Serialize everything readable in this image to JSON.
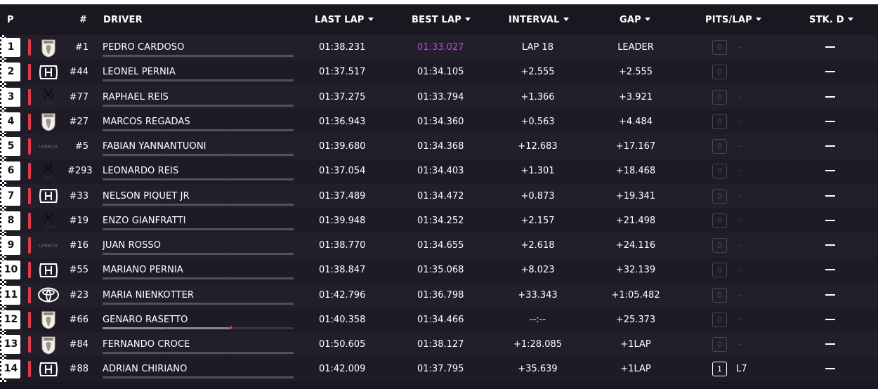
{
  "header": {
    "pos": "P",
    "num": "#",
    "driver": "DRIVER",
    "last_lap": "LAST LAP",
    "best_lap": "BEST LAP",
    "interval": "INTERVAL",
    "gap": "GAP",
    "pits_lap": "PITS/LAP",
    "stk_d": "STK. D"
  },
  "colors": {
    "team_stripe": "#e03a4c",
    "fastest_lap": "#b84be6",
    "background": "#1b1720",
    "row_alt": "#231f2a"
  },
  "rows": [
    {
      "pos": "1",
      "logo": "peugeot-logo-icon",
      "num": "#1",
      "driver": "PEDRO CARDOSO",
      "last": "01:38.231",
      "best": "01:33.027",
      "best_fastest": true,
      "interval": "LAP 18",
      "gap": "LEADER",
      "pits": "0",
      "pit_lap": "-",
      "stk": "—"
    },
    {
      "pos": "2",
      "logo": "honda-logo-icon",
      "num": "#44",
      "driver": "LEONEL PERNIA",
      "last": "01:37.517",
      "best": "01:34.105",
      "interval": "+2.555",
      "gap": "+2.555",
      "pits": "0",
      "pit_lap": "-",
      "stk": "—"
    },
    {
      "pos": "3",
      "logo": "cupra-logo-icon",
      "num": "#77",
      "driver": "RAPHAEL REIS",
      "last": "01:37.275",
      "best": "01:33.794",
      "interval": "+1.366",
      "gap": "+3.921",
      "pits": "0",
      "pit_lap": "-",
      "stk": "—"
    },
    {
      "pos": "4",
      "logo": "peugeot-logo-icon",
      "num": "#27",
      "driver": "MARCOS REGADAS",
      "last": "01:36.943",
      "best": "01:34.360",
      "interval": "+0.563",
      "gap": "+4.484",
      "pits": "0",
      "pit_lap": "-",
      "stk": "—"
    },
    {
      "pos": "5",
      "logo": "lynkco-logo-icon",
      "num": "#5",
      "driver": "FABIAN YANNANTUONI",
      "last": "01:39.680",
      "best": "01:34.368",
      "interval": "+12.683",
      "gap": "+17.167",
      "pits": "0",
      "pit_lap": "-",
      "stk": "—"
    },
    {
      "pos": "6",
      "logo": "cupra-logo-icon",
      "num": "#293",
      "driver": "LEONARDO REIS",
      "last": "01:37.054",
      "best": "01:34.403",
      "interval": "+1.301",
      "gap": "+18.468",
      "pits": "0",
      "pit_lap": "-",
      "stk": "—"
    },
    {
      "pos": "7",
      "logo": "honda-logo-icon",
      "num": "#33",
      "driver": "NELSON PIQUET JR",
      "last": "01:37.489",
      "best": "01:34.472",
      "interval": "+0.873",
      "gap": "+19.341",
      "pits": "0",
      "pit_lap": "-",
      "stk": "—"
    },
    {
      "pos": "8",
      "logo": "cupra-logo-icon",
      "num": "#19",
      "driver": "ENZO GIANFRATTI",
      "last": "01:39.948",
      "best": "01:34.252",
      "interval": "+2.157",
      "gap": "+21.498",
      "pits": "0",
      "pit_lap": "-",
      "stk": "—"
    },
    {
      "pos": "9",
      "logo": "lynkco-logo-icon",
      "num": "#16",
      "driver": "JUAN ROSSO",
      "last": "01:38.770",
      "best": "01:34.655",
      "interval": "+2.618",
      "gap": "+24.116",
      "pits": "0",
      "pit_lap": "-",
      "stk": "—"
    },
    {
      "pos": "10",
      "logo": "honda-logo-icon",
      "num": "#55",
      "driver": "MARIANO PERNIA",
      "last": "01:38.847",
      "best": "01:35.068",
      "interval": "+8.023",
      "gap": "+32.139",
      "pits": "0",
      "pit_lap": "-",
      "stk": "—"
    },
    {
      "pos": "11",
      "logo": "toyota-logo-icon",
      "num": "#23",
      "driver": "MARIA NIENKOTTER",
      "last": "01:42.796",
      "best": "01:36.798",
      "interval": "+33.343",
      "gap": "+1:05.482",
      "pits": "0",
      "pit_lap": "-",
      "stk": "—"
    },
    {
      "pos": "12",
      "logo": "peugeot-logo-icon",
      "num": "#66",
      "driver": "GENARO RASETTO",
      "last": "01:40.358",
      "best": "01:34.466",
      "interval": "--:--",
      "gap": "+25.373",
      "pits": "0",
      "pit_lap": "-",
      "stk": "—",
      "sector_marker": true
    },
    {
      "pos": "13",
      "logo": "peugeot-logo-icon",
      "num": "#84",
      "driver": "FERNANDO CROCE",
      "last": "01:50.605",
      "best": "01:38.127",
      "interval": "+1:28.085",
      "gap": "+1LAP",
      "pits": "0",
      "pit_lap": "-",
      "stk": "—"
    },
    {
      "pos": "14",
      "logo": "honda-logo-icon",
      "num": "#88",
      "driver": "ADRIAN CHIRIANO",
      "last": "01:42.009",
      "best": "01:37.795",
      "interval": "+35.639",
      "gap": "+1LAP",
      "pits": "1",
      "pit_lap": "L7",
      "pit_active": true,
      "stk": "—"
    }
  ]
}
